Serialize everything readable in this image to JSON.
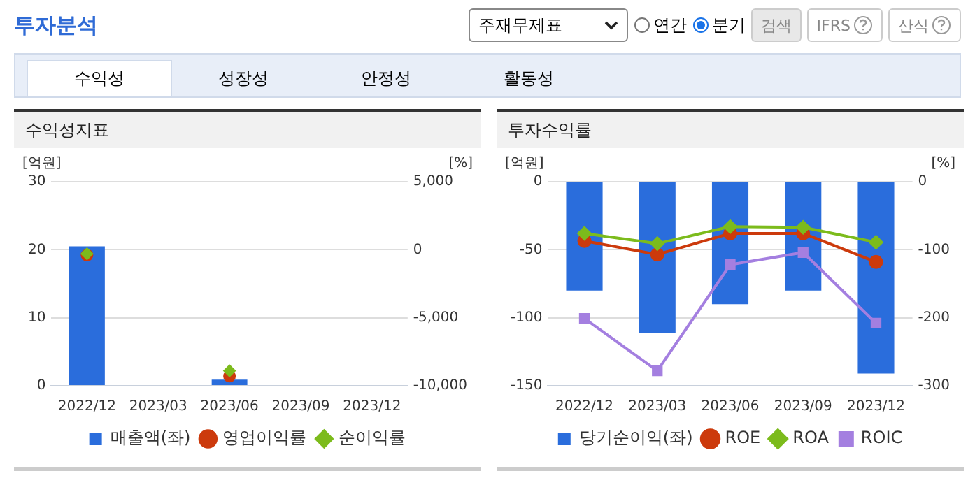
{
  "chart_data": [
    {
      "type": "other",
      "title": "투자분석",
      "annotations": [
        "주재무제표",
        "연간",
        "분기",
        "검색",
        "IFRS",
        "산식",
        "수익성",
        "성장성",
        "안정성",
        "활동성"
      ]
    },
    {
      "type": "bar",
      "title": "수익성지표",
      "ylabel": "[억원]",
      "y2label": "[%]",
      "categories": [
        "2022/12",
        "2023/03",
        "2023/06",
        "2023/09",
        "2023/12"
      ],
      "series": [
        {
          "name": "매출액(좌)",
          "type": "bar",
          "color": "#2a6ddc",
          "values": [
            20.5,
            null,
            0.9,
            null,
            null
          ]
        },
        {
          "name": "영업이익률",
          "type": "scatter",
          "axis": "y2",
          "marker": "circle",
          "color": "#cc3a0c",
          "values": [
            -400,
            null,
            -9300,
            null,
            null
          ]
        },
        {
          "name": "순이익률",
          "type": "scatter",
          "axis": "y2",
          "marker": "diamond",
          "color": "#7cbb1c",
          "values": [
            -300,
            null,
            -8900,
            null,
            null
          ]
        }
      ],
      "ylim": [
        0,
        30
      ],
      "yticks": [
        0,
        10,
        20,
        30
      ],
      "y2lim": [
        -10000,
        5000
      ],
      "y2ticks": [
        {
          "value": -10000,
          "label": "-10,000"
        },
        {
          "value": -5000,
          "label": "-5,000"
        },
        0,
        {
          "value": 5000,
          "label": "5,000"
        }
      ],
      "grid": "y",
      "legend": "bottom"
    },
    {
      "type": "bar",
      "title": "투자수익률",
      "ylabel": "[억원]",
      "y2label": "[%]",
      "categories": [
        "2022/12",
        "2023/03",
        "2023/06",
        "2023/09",
        "2023/12"
      ],
      "series": [
        {
          "name": "당기순이익(좌)",
          "type": "bar",
          "color": "#2a6ddc",
          "values": [
            -80,
            -111,
            -90,
            -80,
            -141
          ]
        },
        {
          "name": "ROE",
          "type": "line",
          "axis": "y2",
          "marker": "circle",
          "color": "#cc3a0c",
          "values": [
            -87,
            -107,
            -76,
            -76,
            -118
          ]
        },
        {
          "name": "ROA",
          "type": "line",
          "axis": "y2",
          "marker": "diamond",
          "color": "#7cbb1c",
          "values": [
            -76,
            -91,
            -66,
            -67,
            -89
          ]
        },
        {
          "name": "ROIC",
          "type": "line",
          "axis": "y2",
          "marker": "square",
          "color": "#a47fe0",
          "values": [
            -201,
            -278,
            -122,
            -104,
            -208
          ]
        }
      ],
      "ylim": [
        -150,
        0
      ],
      "yticks": [
        -150,
        -100,
        -50,
        0
      ],
      "y2lim": [
        -300,
        0
      ],
      "y2ticks": [
        -300,
        -200,
        -100,
        0
      ],
      "grid": "y",
      "legend": "bottom"
    }
  ]
}
